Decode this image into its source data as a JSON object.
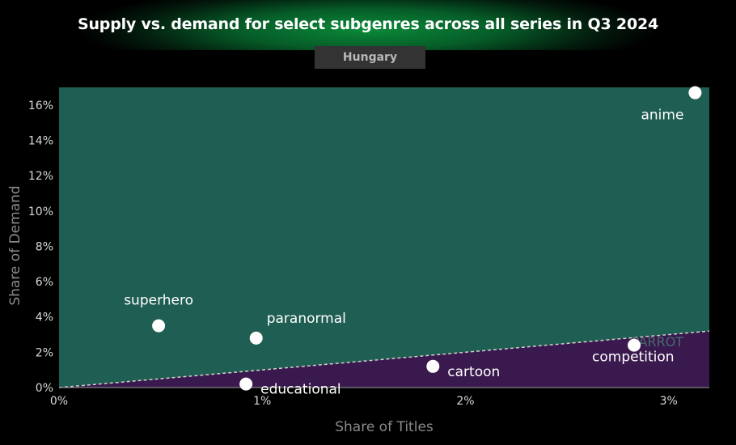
{
  "header": {
    "title": "Supply vs. demand for select subgenres across all series in Q3 2024",
    "region": "Hungary"
  },
  "watermark": "PARROT",
  "colors": {
    "above_region": "#1f5e52",
    "below_region": "#3a1a4e",
    "points": "#ffffff",
    "title_glow": "#0a8a3a",
    "parity_line": "#d0d0d0"
  },
  "chart_data": {
    "type": "scatter",
    "title": "Supply vs. demand for select subgenres across all series in Q3 2024",
    "subtitle": "Hungary",
    "xlabel": "Share of Titles",
    "ylabel": "Share of Demand",
    "xlim": [
      0,
      3.2
    ],
    "ylim": [
      0,
      17
    ],
    "x_ticks": [
      {
        "value": 0,
        "label": "0%"
      },
      {
        "value": 1,
        "label": "1%"
      },
      {
        "value": 2,
        "label": "2%"
      },
      {
        "value": 3,
        "label": "3%"
      }
    ],
    "y_ticks": [
      {
        "value": 0,
        "label": "0%"
      },
      {
        "value": 2,
        "label": "2%"
      },
      {
        "value": 4,
        "label": "4%"
      },
      {
        "value": 6,
        "label": "6%"
      },
      {
        "value": 8,
        "label": "8%"
      },
      {
        "value": 10,
        "label": "10%"
      },
      {
        "value": 12,
        "label": "12%"
      },
      {
        "value": 14,
        "label": "14%"
      },
      {
        "value": 16,
        "label": "16%"
      }
    ],
    "parity_line": {
      "x": [
        0,
        3.2
      ],
      "y": [
        0,
        3.2
      ]
    },
    "grid": false,
    "legend": "none",
    "points": [
      {
        "label": "anime",
        "x": 3.13,
        "y": 16.7,
        "label_pos": "below-left"
      },
      {
        "label": "superhero",
        "x": 0.49,
        "y": 3.5,
        "label_pos": "above"
      },
      {
        "label": "paranormal",
        "x": 0.97,
        "y": 2.8,
        "label_pos": "above-right"
      },
      {
        "label": "competition",
        "x": 2.83,
        "y": 2.4,
        "label_pos": "right"
      },
      {
        "label": "cartoon",
        "x": 1.84,
        "y": 1.2,
        "label_pos": "right"
      },
      {
        "label": "educational",
        "x": 0.92,
        "y": 0.2,
        "label_pos": "right"
      }
    ]
  }
}
